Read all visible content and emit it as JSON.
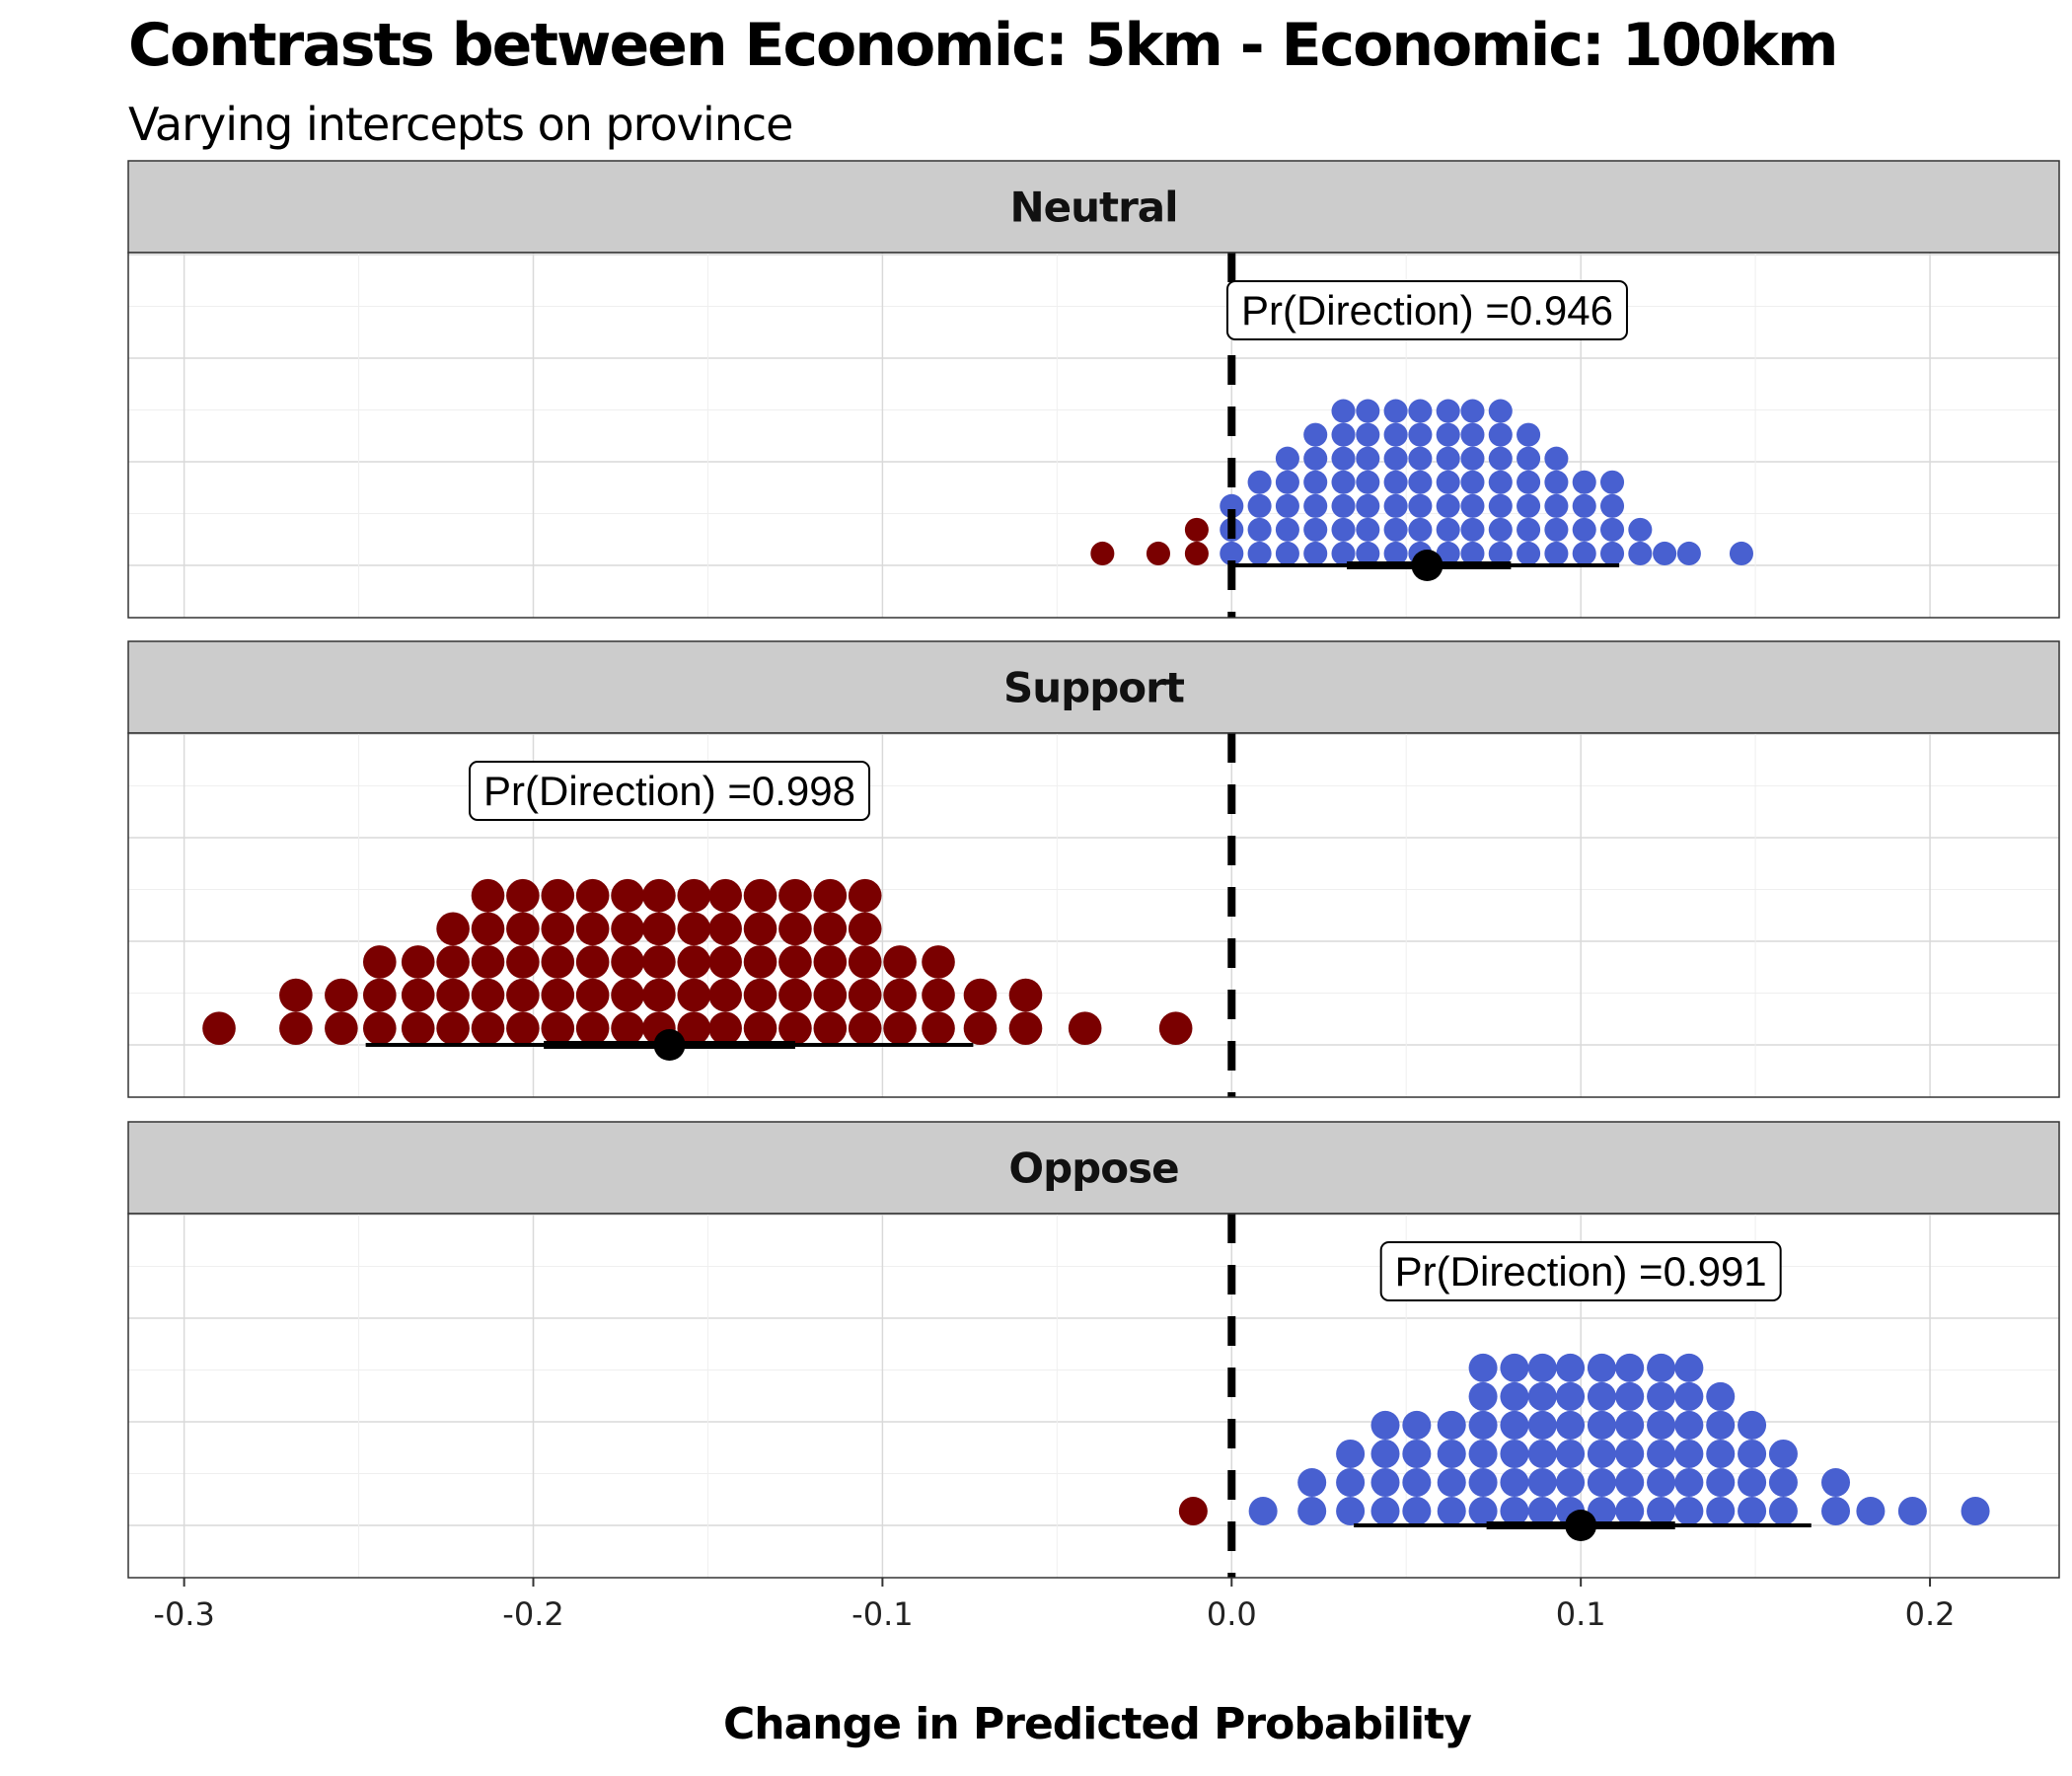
{
  "chart_data": {
    "type": "dotplot",
    "title": "Contrasts between Economic: 5km - Economic: 100km",
    "subtitle": "Varying intercepts on province",
    "xlabel": "Change in Predicted Probability",
    "xlim": [
      -0.316,
      0.237
    ],
    "x_ticks": [
      -0.3,
      -0.2,
      -0.1,
      0.0,
      0.1,
      0.2
    ],
    "x_tick_labels": [
      "-0.3",
      "-0.2",
      "-0.1",
      "0.0",
      "0.1",
      "0.2"
    ],
    "reference_line": 0.0,
    "colors": {
      "positive": "#4860D0",
      "negative": "#7A0000",
      "strip": "#CCCCCC",
      "grid": "#D9D9D9"
    },
    "panels": [
      {
        "label": "Neutral",
        "pd_label": "Pr(Direction) =0.946",
        "pd_value": 0.946,
        "point_estimate": 0.056,
        "interval_inner": [
          0.033,
          0.08
        ],
        "interval_outer": [
          0.0,
          0.111
        ],
        "dot_diameter": 0.0068,
        "dots": [
          {
            "x": -0.037,
            "n": 1
          },
          {
            "x": -0.021,
            "n": 1
          },
          {
            "x": -0.01,
            "n": 2
          },
          {
            "x": 0.0,
            "n": 3
          },
          {
            "x": 0.008,
            "n": 4
          },
          {
            "x": 0.016,
            "n": 5
          },
          {
            "x": 0.024,
            "n": 6
          },
          {
            "x": 0.032,
            "n": 7
          },
          {
            "x": 0.039,
            "n": 8
          },
          {
            "x": 0.047,
            "n": 8
          },
          {
            "x": 0.054,
            "n": 8
          },
          {
            "x": 0.062,
            "n": 8
          },
          {
            "x": 0.069,
            "n": 8
          },
          {
            "x": 0.077,
            "n": 7
          },
          {
            "x": 0.085,
            "n": 6
          },
          {
            "x": 0.093,
            "n": 5
          },
          {
            "x": 0.101,
            "n": 4
          },
          {
            "x": 0.109,
            "n": 4
          },
          {
            "x": 0.117,
            "n": 2
          },
          {
            "x": 0.124,
            "n": 1
          },
          {
            "x": 0.131,
            "n": 1
          },
          {
            "x": 0.146,
            "n": 1
          }
        ]
      },
      {
        "label": "Support",
        "pd_label": "Pr(Direction) =0.998",
        "pd_value": 0.998,
        "point_estimate": -0.161,
        "interval_inner": [
          -0.197,
          -0.125
        ],
        "interval_outer": [
          -0.248,
          -0.074
        ],
        "dot_diameter": 0.0095,
        "dots": [
          {
            "x": -0.29,
            "n": 1
          },
          {
            "x": -0.268,
            "n": 2
          },
          {
            "x": -0.255,
            "n": 2
          },
          {
            "x": -0.244,
            "n": 3
          },
          {
            "x": -0.233,
            "n": 3
          },
          {
            "x": -0.223,
            "n": 4
          },
          {
            "x": -0.213,
            "n": 5
          },
          {
            "x": -0.203,
            "n": 5
          },
          {
            "x": -0.193,
            "n": 6
          },
          {
            "x": -0.183,
            "n": 7
          },
          {
            "x": -0.173,
            "n": 7
          },
          {
            "x": -0.164,
            "n": 7
          },
          {
            "x": -0.154,
            "n": 7
          },
          {
            "x": -0.145,
            "n": 7
          },
          {
            "x": -0.135,
            "n": 6
          },
          {
            "x": -0.125,
            "n": 6
          },
          {
            "x": -0.115,
            "n": 5
          },
          {
            "x": -0.105,
            "n": 5
          },
          {
            "x": -0.095,
            "n": 3
          },
          {
            "x": -0.084,
            "n": 3
          },
          {
            "x": -0.072,
            "n": 2
          },
          {
            "x": -0.059,
            "n": 2
          },
          {
            "x": -0.042,
            "n": 1
          },
          {
            "x": -0.016,
            "n": 1
          }
        ]
      },
      {
        "label": "Oppose",
        "pd_label": "Pr(Direction) =0.991",
        "pd_value": 0.991,
        "point_estimate": 0.1,
        "interval_inner": [
          0.073,
          0.127
        ],
        "interval_outer": [
          0.035,
          0.166
        ],
        "dot_diameter": 0.0082,
        "dots": [
          {
            "x": -0.011,
            "n": 1
          },
          {
            "x": 0.009,
            "n": 1
          },
          {
            "x": 0.023,
            "n": 2
          },
          {
            "x": 0.034,
            "n": 3
          },
          {
            "x": 0.044,
            "n": 4
          },
          {
            "x": 0.053,
            "n": 4
          },
          {
            "x": 0.063,
            "n": 4
          },
          {
            "x": 0.072,
            "n": 6
          },
          {
            "x": 0.081,
            "n": 7
          },
          {
            "x": 0.089,
            "n": 8
          },
          {
            "x": 0.097,
            "n": 8
          },
          {
            "x": 0.106,
            "n": 8
          },
          {
            "x": 0.114,
            "n": 8
          },
          {
            "x": 0.123,
            "n": 7
          },
          {
            "x": 0.131,
            "n": 7
          },
          {
            "x": 0.14,
            "n": 5
          },
          {
            "x": 0.149,
            "n": 4
          },
          {
            "x": 0.158,
            "n": 3
          },
          {
            "x": 0.173,
            "n": 2
          },
          {
            "x": 0.183,
            "n": 1
          },
          {
            "x": 0.195,
            "n": 1
          },
          {
            "x": 0.213,
            "n": 1
          }
        ]
      }
    ]
  }
}
